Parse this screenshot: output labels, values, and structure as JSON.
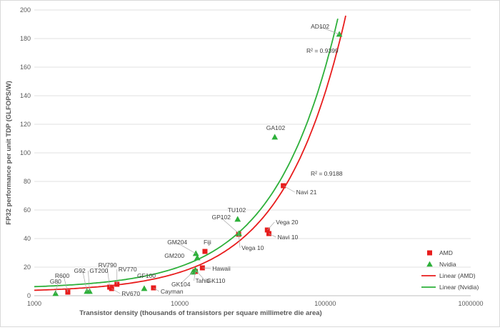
{
  "chart_data": {
    "type": "scatter",
    "xscale": "log",
    "xlabel": "Transistor density (thousands of transistors per square millimetre die area)",
    "ylabel": "FP32 performance per unit TDP (GLFOPS/W)",
    "xlim": [
      1000,
      1000000
    ],
    "ylim": [
      0,
      200
    ],
    "x_ticks": [
      1000,
      10000,
      100000,
      1000000
    ],
    "x_tick_labels": [
      "1000",
      "10000",
      "100000",
      "1000000"
    ],
    "y_ticks": [
      0,
      20,
      40,
      60,
      80,
      100,
      120,
      140,
      160,
      180,
      200
    ],
    "grid": "horizontal",
    "legend_position": "right",
    "series": [
      {
        "name": "AMD",
        "marker": "square",
        "color": "#e81c1c",
        "points": [
          {
            "label": "R600",
            "x": 1700,
            "y": 2.5
          },
          {
            "label": "RV670",
            "x": 3400,
            "y": 5
          },
          {
            "label": "RV790",
            "x": 3300,
            "y": 6
          },
          {
            "label": "RV770",
            "x": 3700,
            "y": 8
          },
          {
            "label": "Cayman",
            "x": 6600,
            "y": 5.5
          },
          {
            "label": "Tahiti",
            "x": 12800,
            "y": 17
          },
          {
            "label": "Hawaii",
            "x": 14300,
            "y": 19.5
          },
          {
            "label": "Fiji",
            "x": 14900,
            "y": 31
          },
          {
            "label": "Vega 10",
            "x": 25400,
            "y": 43
          },
          {
            "label": "Vega 20",
            "x": 40000,
            "y": 46
          },
          {
            "label": "Navi 10",
            "x": 41000,
            "y": 43.5
          },
          {
            "label": "Navi 21",
            "x": 51500,
            "y": 77
          }
        ]
      },
      {
        "name": "Nvidia",
        "marker": "triangle",
        "color": "#2db03a",
        "points": [
          {
            "label": "G80",
            "x": 1400,
            "y": 1.5
          },
          {
            "label": "G92",
            "x": 2300,
            "y": 3
          },
          {
            "label": "GT200",
            "x": 2400,
            "y": 3
          },
          {
            "label": "GF100",
            "x": 5700,
            "y": 5
          },
          {
            "label": "GK104",
            "x": 12300,
            "y": 16.5
          },
          {
            "label": "GK110",
            "x": 12800,
            "y": 18
          },
          {
            "label": "GM200",
            "x": 13200,
            "y": 26.5
          },
          {
            "label": "GM204",
            "x": 12900,
            "y": 29.5
          },
          {
            "label": "GP102",
            "x": 25500,
            "y": 43.5
          },
          {
            "label": "TU102",
            "x": 25000,
            "y": 53.5
          },
          {
            "label": "GA102",
            "x": 45000,
            "y": 111
          },
          {
            "label": "AD102",
            "x": 125000,
            "y": 183
          }
        ]
      },
      {
        "name": "Linear (AMD)",
        "type": "trendline",
        "color": "#e81c1c",
        "r_squared_label": "R² = 0.9188",
        "slope_per_1000": 1.4,
        "intercept": 2.4
      },
      {
        "name": "Linear (Nvidia)",
        "type": "trendline",
        "color": "#2db03a",
        "r_squared_label": "R² = 0.9399",
        "slope_per_1000": 1.55,
        "intercept": 4.8
      }
    ]
  }
}
